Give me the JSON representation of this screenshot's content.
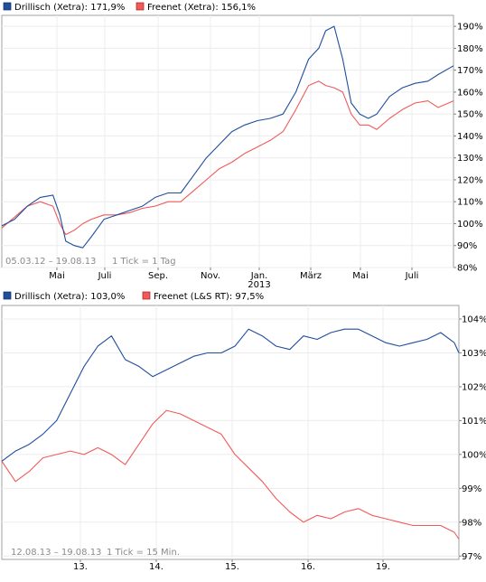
{
  "chart_data": [
    {
      "type": "line",
      "legend": [
        {
          "label": "Drillisch (Xetra): 171,9%",
          "color": "#1f4e9c"
        },
        {
          "label": "Freenet (Xetra): 156,1%",
          "color": "#f05a5a"
        }
      ],
      "period_label": "05.03.12 – 19.08.13",
      "tick_label": "1 Tick = 1 Tag",
      "x_ticks": [
        "Mai",
        "Juli",
        "Sep.",
        "Nov.",
        "Jan.",
        "März",
        "Mai",
        "Juli"
      ],
      "x_year_label": "2013",
      "y_ticks": [
        "190%",
        "180%",
        "170%",
        "160%",
        "150%",
        "140%",
        "130%",
        "120%",
        "110%",
        "100%",
        "90%",
        "80%"
      ],
      "ylim": [
        80,
        195
      ],
      "x_axis_unit": "days since 05.03.12",
      "series": [
        {
          "name": "Drillisch (Xetra)",
          "color": "#1f4e9c",
          "x": [
            0,
            15,
            30,
            45,
            60,
            68,
            75,
            85,
            95,
            105,
            120,
            135,
            150,
            165,
            180,
            195,
            210,
            225,
            240,
            255,
            270,
            285,
            300,
            315,
            330,
            345,
            360,
            372,
            380,
            390,
            400,
            410,
            420,
            430,
            440,
            455,
            470,
            485,
            500,
            512,
            530
          ],
          "values": [
            99,
            102,
            108,
            112,
            113,
            104,
            92,
            90,
            89,
            94,
            102,
            104,
            106,
            108,
            112,
            114,
            114,
            122,
            130,
            136,
            142,
            145,
            147,
            148,
            150,
            160,
            175,
            180,
            188,
            190,
            175,
            155,
            150,
            148,
            150,
            158,
            162,
            164,
            165,
            168,
            172
          ]
        },
        {
          "name": "Freenet (Xetra)",
          "color": "#f05a5a",
          "x": [
            0,
            15,
            30,
            45,
            60,
            68,
            75,
            85,
            95,
            105,
            120,
            135,
            150,
            165,
            180,
            195,
            210,
            225,
            240,
            255,
            270,
            285,
            300,
            315,
            330,
            345,
            360,
            372,
            380,
            390,
            400,
            410,
            420,
            430,
            440,
            455,
            470,
            485,
            500,
            512,
            530
          ],
          "values": [
            98,
            103,
            108,
            110,
            108,
            100,
            95,
            97,
            100,
            102,
            104,
            104,
            105,
            107,
            108,
            110,
            110,
            115,
            120,
            125,
            128,
            132,
            135,
            138,
            142,
            152,
            163,
            165,
            163,
            162,
            160,
            150,
            145,
            145,
            143,
            148,
            152,
            155,
            156,
            153,
            156
          ]
        }
      ]
    },
    {
      "type": "line",
      "legend": [
        {
          "label": "Drillisch (Xetra): 103,0%",
          "color": "#1f4e9c"
        },
        {
          "label": "Freenet (L&S RT): 97,5%",
          "color": "#f05a5a"
        }
      ],
      "period_label": "12.08.13 – 19.08.13",
      "tick_label": "1 Tick = 15 Min.",
      "x_ticks": [
        "13.",
        "14.",
        "15.",
        "16.",
        "19."
      ],
      "y_ticks": [
        "104%",
        "103%",
        "102%",
        "101%",
        "100%",
        "99%",
        "98%",
        "97%"
      ],
      "ylim": [
        96.9,
        104.4
      ],
      "x_axis_unit": "trading days since 12.08.13",
      "series": [
        {
          "name": "Drillisch (Xetra)",
          "color": "#1f4e9c",
          "x": [
            0,
            0.15,
            0.3,
            0.45,
            0.6,
            0.75,
            0.9,
            1.05,
            1.2,
            1.35,
            1.5,
            1.65,
            1.8,
            1.95,
            2.1,
            2.25,
            2.4,
            2.55,
            2.7,
            2.85,
            3.0,
            3.15,
            3.3,
            3.45,
            3.6,
            3.75,
            3.9,
            4.05,
            4.2,
            4.35,
            4.5,
            4.65,
            4.8,
            4.95,
            5.0
          ],
          "values": [
            99.8,
            100.1,
            100.3,
            100.6,
            101.0,
            101.8,
            102.6,
            103.2,
            103.5,
            102.8,
            102.6,
            102.3,
            102.5,
            102.7,
            102.9,
            103.0,
            103.0,
            103.2,
            103.7,
            103.5,
            103.2,
            103.1,
            103.5,
            103.4,
            103.6,
            103.7,
            103.7,
            103.5,
            103.3,
            103.2,
            103.3,
            103.4,
            103.6,
            103.3,
            103.0
          ]
        },
        {
          "name": "Freenet (L&S RT)",
          "color": "#f05a5a",
          "x": [
            0,
            0.15,
            0.3,
            0.45,
            0.6,
            0.75,
            0.9,
            1.05,
            1.2,
            1.35,
            1.5,
            1.65,
            1.8,
            1.95,
            2.1,
            2.25,
            2.4,
            2.55,
            2.7,
            2.85,
            3.0,
            3.15,
            3.3,
            3.45,
            3.6,
            3.75,
            3.9,
            4.05,
            4.2,
            4.35,
            4.5,
            4.65,
            4.8,
            4.95,
            5.0
          ],
          "values": [
            99.8,
            99.2,
            99.5,
            99.9,
            100.0,
            100.1,
            100.0,
            100.2,
            100.0,
            99.7,
            100.3,
            100.9,
            101.3,
            101.2,
            101.0,
            100.8,
            100.6,
            100.0,
            99.6,
            99.2,
            98.7,
            98.3,
            98.0,
            98.2,
            98.1,
            98.3,
            98.4,
            98.2,
            98.1,
            98.0,
            97.9,
            97.9,
            97.9,
            97.7,
            97.5
          ]
        }
      ]
    }
  ]
}
